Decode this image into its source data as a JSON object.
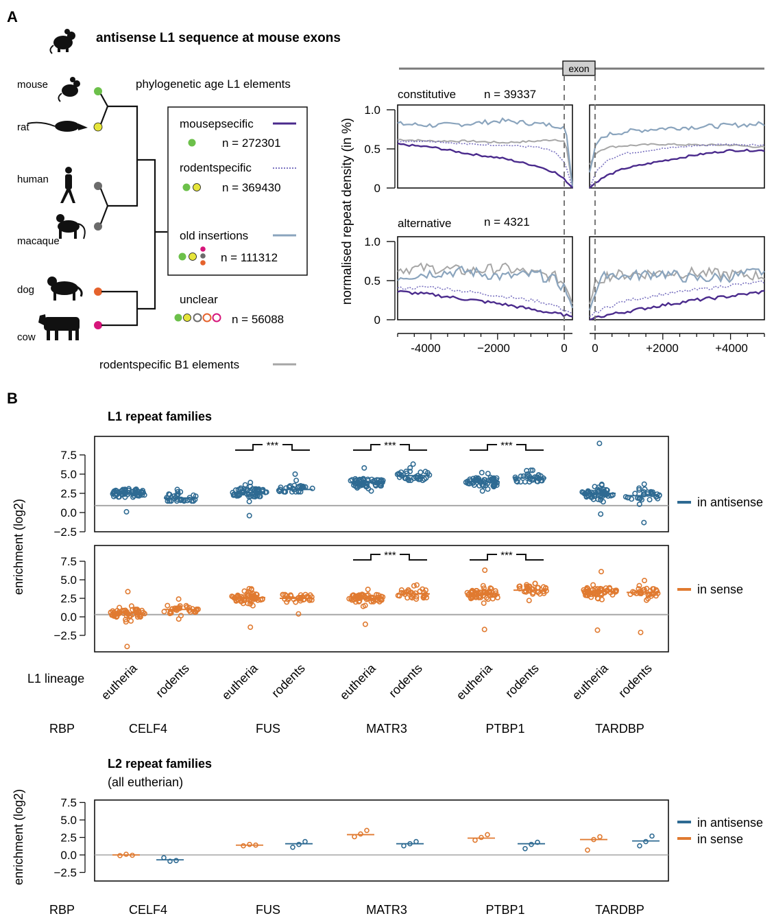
{
  "panel_a": {
    "letter": "A",
    "title": "antisense L1 sequence at mouse exons",
    "phylo_header": "phylogenetic age  L1 elements",
    "species": [
      "mouse",
      "rat",
      "human",
      "macaque",
      "dog",
      "cow"
    ],
    "legend": [
      {
        "label": "mousepsecific",
        "n": "n = 272301"
      },
      {
        "label": "rodentspecific",
        "n": "n = 369430"
      },
      {
        "label": "old insertions",
        "n": "n = 111312"
      }
    ],
    "unclear": {
      "label": "unclear",
      "n": "n = 56088"
    },
    "b1_label": "rodentspecific B1 elements",
    "exon_label": "exon",
    "ylabel": "normalised repeat density (in %)",
    "constitutive": {
      "label": "constitutive",
      "n": "n = 39337"
    },
    "alternative": {
      "label": "alternative",
      "n": "n = 4321"
    },
    "yticks": [
      "1.0",
      "0.5",
      "0"
    ],
    "xticks_left": [
      "-4000",
      "−2000",
      "0"
    ],
    "xticks_right": [
      "0",
      "+2000",
      "+4000"
    ]
  },
  "panel_b": {
    "letter": "B",
    "l1_title": "L1 repeat families",
    "l2_title": "L2 repeat families",
    "l2_subtitle": "(all eutherian)",
    "ylabel": "enrichment (log2)",
    "yticks": [
      "7.5",
      "5.0",
      "2.5",
      "0.0",
      "−2.5"
    ],
    "lineage_label": "L1 lineage",
    "rbp_label": "RBP",
    "rbps": [
      "CELF4",
      "FUS",
      "MATR3",
      "PTBP1",
      "TARDBP"
    ],
    "lineages": [
      "eutheria",
      "rodents"
    ],
    "legend_antisense": "in antisense",
    "legend_sense": "in sense",
    "sig": "***"
  },
  "colors": {
    "mouse_green": "#6cc04a",
    "rat_yellow": "#e6e53b",
    "primate_grey": "#6b6b6b",
    "dog_orange": "#e5622c",
    "cow_magenta": "#d6157a",
    "mousespecific_line": "#4a2a8c",
    "rodentspecific_line": "#7a72c0",
    "old_line": "#8aa4bd",
    "b1_line": "#a6a6a6",
    "antisense": "#2e6a92",
    "sense": "#e07a30",
    "baseline": "#a6a6a6"
  },
  "chart_data": [
    {
      "type": "line",
      "title": "constitutive",
      "ylabel": "normalised repeat density (in %)",
      "xlim": [
        -5000,
        0
      ],
      "ylim": [
        0,
        1.1
      ],
      "x": [
        -5000,
        -4000,
        -3000,
        -2000,
        -1000,
        -500,
        -200,
        0
      ],
      "series": [
        {
          "name": "mousepsecific",
          "values": [
            0.56,
            0.52,
            0.44,
            0.38,
            0.28,
            0.2,
            0.1,
            0.0
          ]
        },
        {
          "name": "rodentspecific",
          "values": [
            0.6,
            0.6,
            0.56,
            0.55,
            0.52,
            0.46,
            0.3,
            0.0
          ]
        },
        {
          "name": "old insertions",
          "values": [
            0.82,
            0.8,
            0.82,
            0.86,
            0.82,
            0.8,
            0.78,
            0.02
          ]
        },
        {
          "name": "rodentspecific B1 elements",
          "values": [
            0.62,
            0.6,
            0.6,
            0.58,
            0.6,
            0.62,
            0.6,
            0.02
          ]
        }
      ]
    },
    {
      "type": "line",
      "title": "constitutive",
      "xlim": [
        0,
        5000
      ],
      "ylim": [
        0,
        1.1
      ],
      "x": [
        0,
        200,
        500,
        1000,
        2000,
        3000,
        4000,
        5000
      ],
      "series": [
        {
          "name": "mousepsecific",
          "values": [
            0.0,
            0.08,
            0.16,
            0.25,
            0.34,
            0.42,
            0.48,
            0.48
          ]
        },
        {
          "name": "rodentspecific",
          "values": [
            0.0,
            0.22,
            0.36,
            0.44,
            0.5,
            0.54,
            0.56,
            0.55
          ]
        },
        {
          "name": "old insertions",
          "values": [
            0.2,
            0.58,
            0.68,
            0.72,
            0.76,
            0.78,
            0.8,
            0.82
          ]
        },
        {
          "name": "rodentspecific B1 elements",
          "values": [
            0.3,
            0.46,
            0.52,
            0.54,
            0.56,
            0.55,
            0.55,
            0.52
          ]
        }
      ]
    },
    {
      "type": "line",
      "title": "alternative",
      "xlim": [
        -5000,
        0
      ],
      "ylim": [
        0,
        1.1
      ],
      "x": [
        -5000,
        -4000,
        -3000,
        -2000,
        -1000,
        -500,
        -200,
        0
      ],
      "series": [
        {
          "name": "mousepsecific",
          "values": [
            0.36,
            0.32,
            0.26,
            0.2,
            0.12,
            0.08,
            0.06,
            0.04
          ]
        },
        {
          "name": "rodentspecific",
          "values": [
            0.4,
            0.42,
            0.36,
            0.3,
            0.24,
            0.18,
            0.12,
            0.08
          ]
        },
        {
          "name": "old insertions",
          "values": [
            0.55,
            0.6,
            0.62,
            0.55,
            0.58,
            0.5,
            0.4,
            0.15
          ]
        },
        {
          "name": "rodentspecific B1 elements",
          "values": [
            0.65,
            0.66,
            0.62,
            0.66,
            0.58,
            0.55,
            0.45,
            0.2
          ]
        }
      ]
    },
    {
      "type": "line",
      "title": "alternative",
      "xlim": [
        0,
        5000
      ],
      "ylim": [
        0,
        1.1
      ],
      "x": [
        0,
        200,
        500,
        1000,
        2000,
        3000,
        4000,
        5000
      ],
      "series": [
        {
          "name": "mousepsecific",
          "values": [
            0.0,
            0.03,
            0.06,
            0.1,
            0.18,
            0.25,
            0.3,
            0.36
          ]
        },
        {
          "name": "rodentspecific",
          "values": [
            0.04,
            0.1,
            0.16,
            0.24,
            0.32,
            0.38,
            0.44,
            0.48
          ]
        },
        {
          "name": "old insertions",
          "values": [
            0.12,
            0.4,
            0.6,
            0.55,
            0.6,
            0.52,
            0.55,
            0.62
          ]
        },
        {
          "name": "rodentspecific B1 elements",
          "values": [
            0.2,
            0.5,
            0.56,
            0.58,
            0.6,
            0.6,
            0.58,
            0.56
          ]
        }
      ]
    },
    {
      "type": "scatter",
      "title": "L1 repeat families",
      "series_name": "in antisense",
      "ylabel": "enrichment (log2)",
      "ylim": [
        -2.5,
        9.2
      ],
      "baseline": 0.9,
      "groups": [
        {
          "rbp": "CELF4",
          "lineage": "eutheria",
          "median": 2.5,
          "min": 0.1,
          "max": 3.1
        },
        {
          "rbp": "CELF4",
          "lineage": "rodents",
          "median": 1.9,
          "min": 1.5,
          "max": 3.0
        },
        {
          "rbp": "FUS",
          "lineage": "eutheria",
          "median": 2.6,
          "min": -0.4,
          "max": 3.9
        },
        {
          "rbp": "FUS",
          "lineage": "rodents",
          "median": 3.0,
          "min": 2.7,
          "max": 5.0
        },
        {
          "rbp": "MATR3",
          "lineage": "eutheria",
          "median": 3.9,
          "min": 2.8,
          "max": 5.8
        },
        {
          "rbp": "MATR3",
          "lineage": "rodents",
          "median": 4.8,
          "min": 4.2,
          "max": 6.3
        },
        {
          "rbp": "PTBP1",
          "lineage": "eutheria",
          "median": 4.0,
          "min": 2.8,
          "max": 5.2
        },
        {
          "rbp": "PTBP1",
          "lineage": "rodents",
          "median": 4.5,
          "min": 4.0,
          "max": 5.5
        },
        {
          "rbp": "TARDBP",
          "lineage": "eutheria",
          "median": 2.5,
          "min": -0.2,
          "max": 9.0
        },
        {
          "rbp": "TARDBP",
          "lineage": "rodents",
          "median": 2.2,
          "min": -1.3,
          "max": 3.7
        }
      ],
      "significant_pairs": [
        "FUS",
        "MATR3",
        "PTBP1"
      ]
    },
    {
      "type": "scatter",
      "title": "L1 repeat families",
      "series_name": "in sense",
      "ylabel": "enrichment (log2)",
      "ylim": [
        -4.2,
        8.5
      ],
      "baseline": 0.3,
      "groups": [
        {
          "rbp": "CELF4",
          "lineage": "eutheria",
          "median": 0.5,
          "min": -4.0,
          "max": 3.4
        },
        {
          "rbp": "CELF4",
          "lineage": "rodents",
          "median": 1.0,
          "min": -0.3,
          "max": 2.4
        },
        {
          "rbp": "FUS",
          "lineage": "eutheria",
          "median": 2.6,
          "min": -1.4,
          "max": 3.8
        },
        {
          "rbp": "FUS",
          "lineage": "rodents",
          "median": 2.5,
          "min": 0.4,
          "max": 3.0
        },
        {
          "rbp": "MATR3",
          "lineage": "eutheria",
          "median": 2.5,
          "min": -1.0,
          "max": 3.7
        },
        {
          "rbp": "MATR3",
          "lineage": "rodents",
          "median": 3.1,
          "min": 2.4,
          "max": 4.3
        },
        {
          "rbp": "PTBP1",
          "lineage": "eutheria",
          "median": 3.0,
          "min": -1.7,
          "max": 6.3
        },
        {
          "rbp": "PTBP1",
          "lineage": "rodents",
          "median": 3.6,
          "min": 2.2,
          "max": 4.5
        },
        {
          "rbp": "TARDBP",
          "lineage": "eutheria",
          "median": 3.4,
          "min": -1.8,
          "max": 6.1
        },
        {
          "rbp": "TARDBP",
          "lineage": "rodents",
          "median": 3.3,
          "min": -2.1,
          "max": 4.9
        }
      ],
      "significant_pairs": [
        "MATR3",
        "PTBP1"
      ]
    },
    {
      "type": "scatter",
      "title": "L2 repeat families",
      "ylabel": "enrichment (log2)",
      "ylim": [
        -2.5,
        7.5
      ],
      "baseline": 0.0,
      "groups": [
        {
          "rbp": "CELF4",
          "series": "in sense",
          "median": 0.0,
          "points": [
            -0.1,
            0.1,
            -0.05
          ]
        },
        {
          "rbp": "CELF4",
          "series": "in antisense",
          "median": -0.7,
          "points": [
            -0.4,
            -0.9,
            -0.8
          ]
        },
        {
          "rbp": "FUS",
          "series": "in sense",
          "median": 1.4,
          "points": [
            1.3,
            1.5,
            1.4
          ]
        },
        {
          "rbp": "FUS",
          "series": "in antisense",
          "median": 1.6,
          "points": [
            1.1,
            1.5,
            1.9
          ]
        },
        {
          "rbp": "MATR3",
          "series": "in sense",
          "median": 2.9,
          "points": [
            2.6,
            3.0,
            3.5
          ]
        },
        {
          "rbp": "MATR3",
          "series": "in antisense",
          "median": 1.6,
          "points": [
            1.3,
            1.6,
            1.9
          ]
        },
        {
          "rbp": "PTBP1",
          "series": "in sense",
          "median": 2.4,
          "points": [
            2.1,
            2.5,
            2.9
          ]
        },
        {
          "rbp": "PTBP1",
          "series": "in antisense",
          "median": 1.6,
          "points": [
            0.9,
            1.5,
            1.8
          ]
        },
        {
          "rbp": "TARDBP",
          "series": "in sense",
          "median": 2.2,
          "points": [
            0.7,
            2.2,
            2.6
          ]
        },
        {
          "rbp": "TARDBP",
          "series": "in antisense",
          "median": 2.0,
          "points": [
            1.3,
            1.9,
            2.7
          ]
        }
      ]
    }
  ]
}
